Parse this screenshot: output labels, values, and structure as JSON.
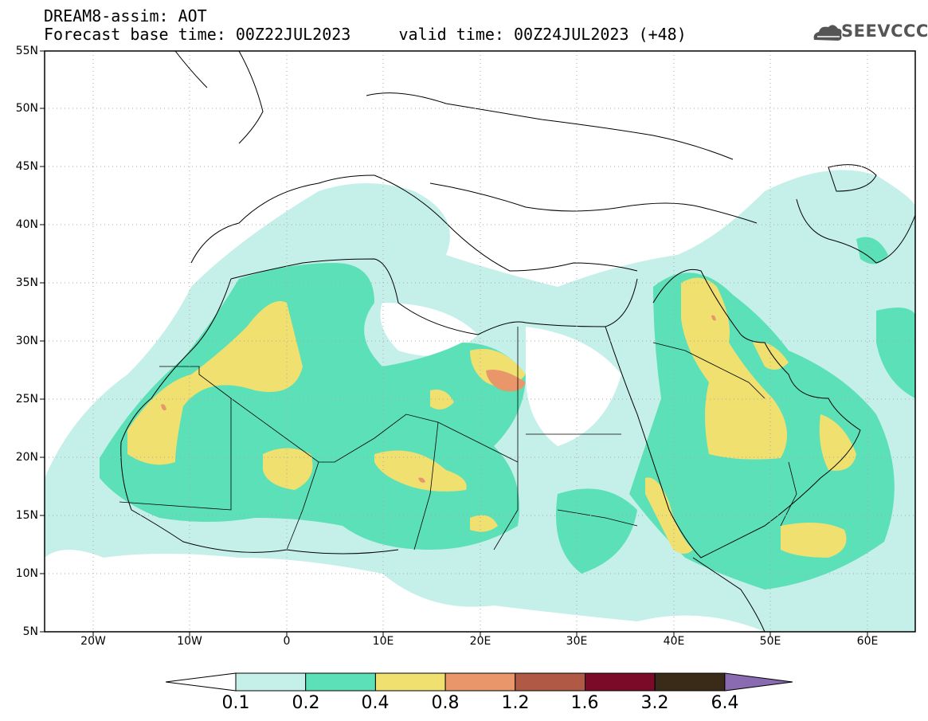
{
  "header": {
    "line1": "DREAM8-assim: AOT",
    "line2": "Forecast base time: 00Z22JUL2023     valid time: 00Z24JUL2023 (+48)"
  },
  "logo": {
    "text": "SEEVCCC"
  },
  "axes": {
    "lat_labels": [
      "55N",
      "50N",
      "45N",
      "40N",
      "35N",
      "30N",
      "25N",
      "20N",
      "15N",
      "10N",
      "5N"
    ],
    "lon_labels": [
      "20W",
      "10W",
      "0",
      "10E",
      "20E",
      "30E",
      "40E",
      "50E",
      "60E"
    ]
  },
  "colorbar": {
    "levels": [
      "0.1",
      "0.2",
      "0.4",
      "0.8",
      "1.2",
      "1.6",
      "3.2",
      "6.4"
    ],
    "colors": [
      "#ffffff",
      "#c5f0ea",
      "#5ce0b8",
      "#f0e070",
      "#e8966a",
      "#b05a45",
      "#7a0a28",
      "#3a2a18",
      "#8a6ab0"
    ]
  }
}
